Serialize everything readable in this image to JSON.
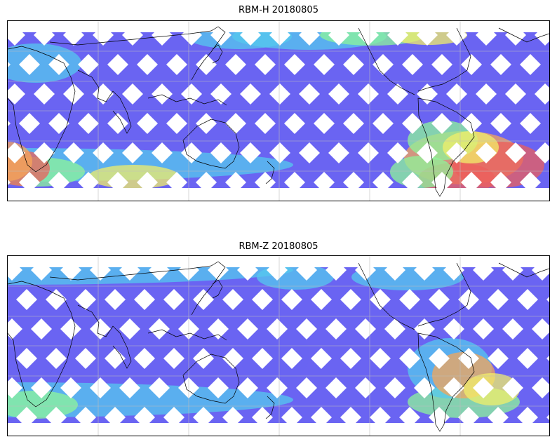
{
  "panels": [
    {
      "title": "RBM-H 20180805"
    },
    {
      "title": "RBM-Z 20180805"
    }
  ],
  "colors": {
    "low": "#6a64f2",
    "mid": "#55c8ee",
    "green": "#8ef59a",
    "yellow": "#f2ee6a",
    "orange": "#f5a55a",
    "high": "#ec5f5c",
    "coastline": "#000000",
    "grid": "#bdbdbd"
  }
}
